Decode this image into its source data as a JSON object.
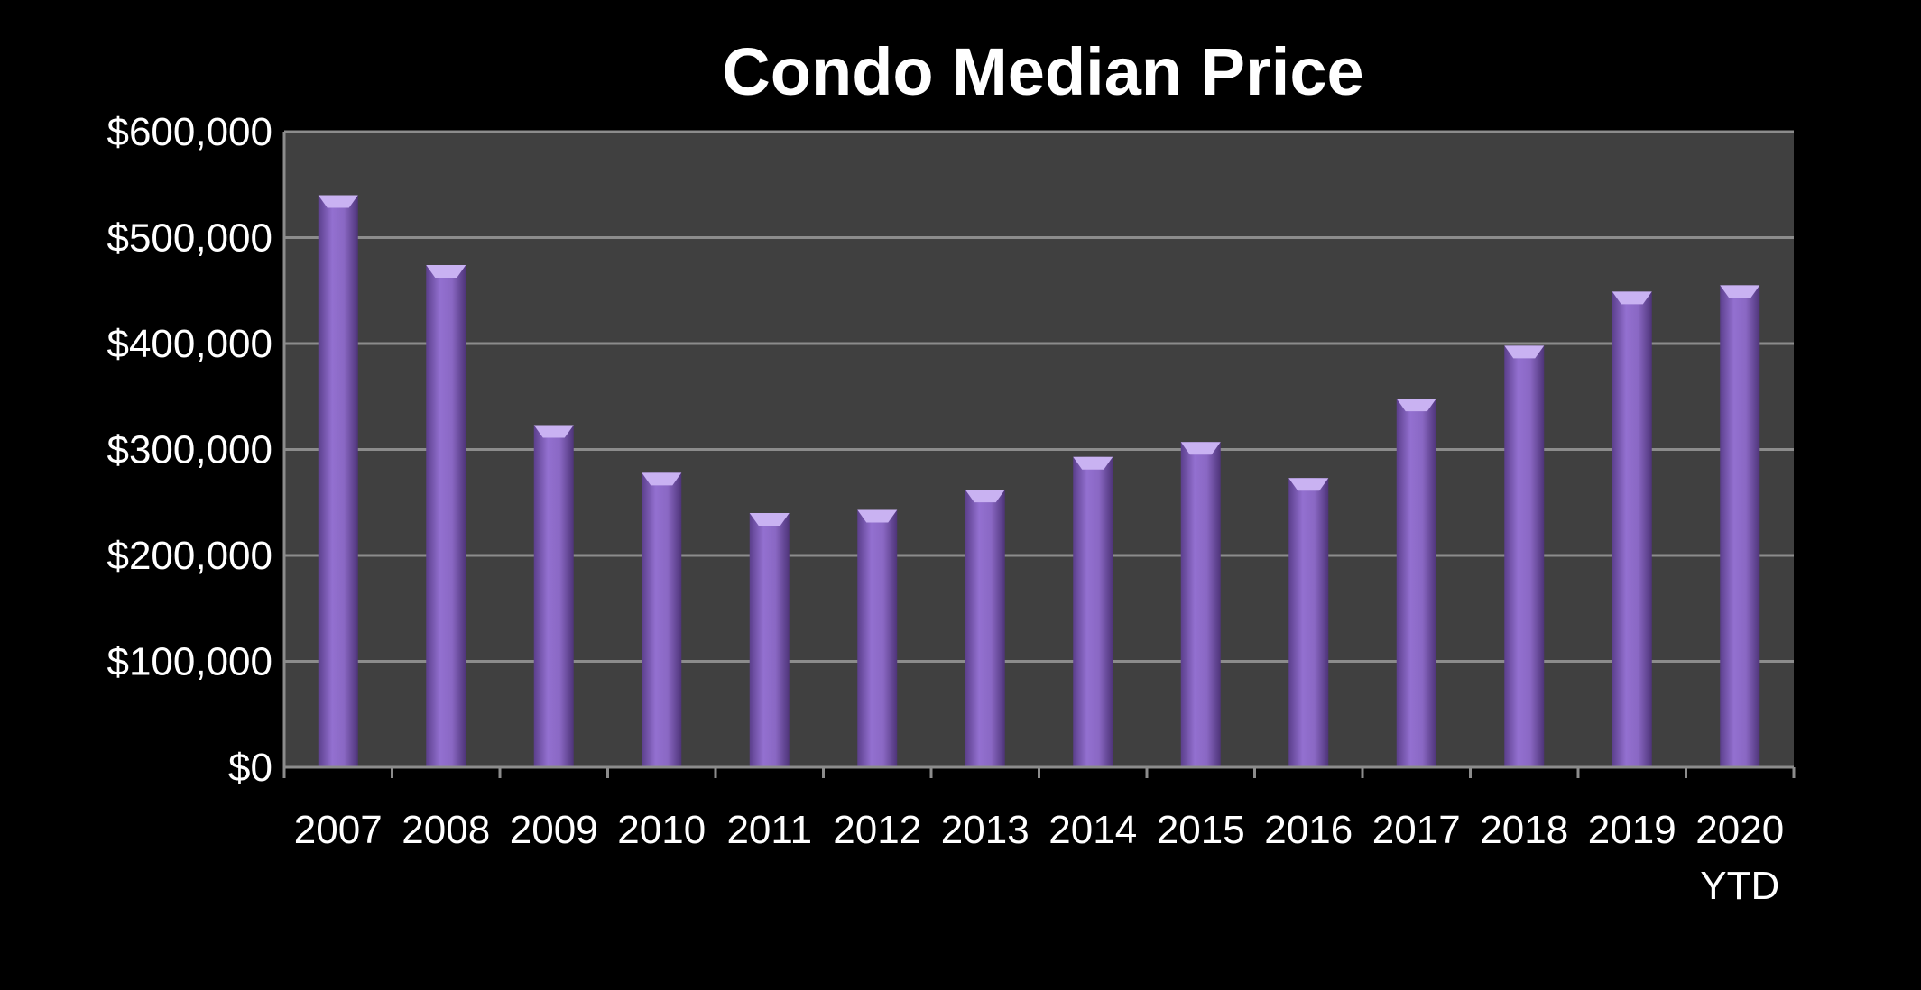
{
  "chart_data": {
    "type": "bar",
    "title": "Condo Median Price",
    "xlabel": "",
    "ylabel": "",
    "categories": [
      "2007",
      "2008",
      "2009",
      "2010",
      "2011",
      "2012",
      "2013",
      "2014",
      "2015",
      "2016",
      "2017",
      "2018",
      "2019",
      "2020\nYTD"
    ],
    "values": [
      540000,
      474000,
      323000,
      278000,
      240000,
      243000,
      262000,
      293000,
      307000,
      273000,
      348000,
      398000,
      449000,
      455000
    ],
    "ylim": [
      0,
      600000
    ],
    "yticks": [
      "$0",
      "$100,000",
      "$200,000",
      "$300,000",
      "$400,000",
      "$500,000",
      "$600,000"
    ],
    "grid": true,
    "legend": "none",
    "colors": {
      "background": "#000000",
      "plot_area": "#404040",
      "gridline": "#8c8c8c",
      "bar": "#8a68c4",
      "bar_top": "#c9b2f2",
      "text": "#ffffff"
    }
  }
}
